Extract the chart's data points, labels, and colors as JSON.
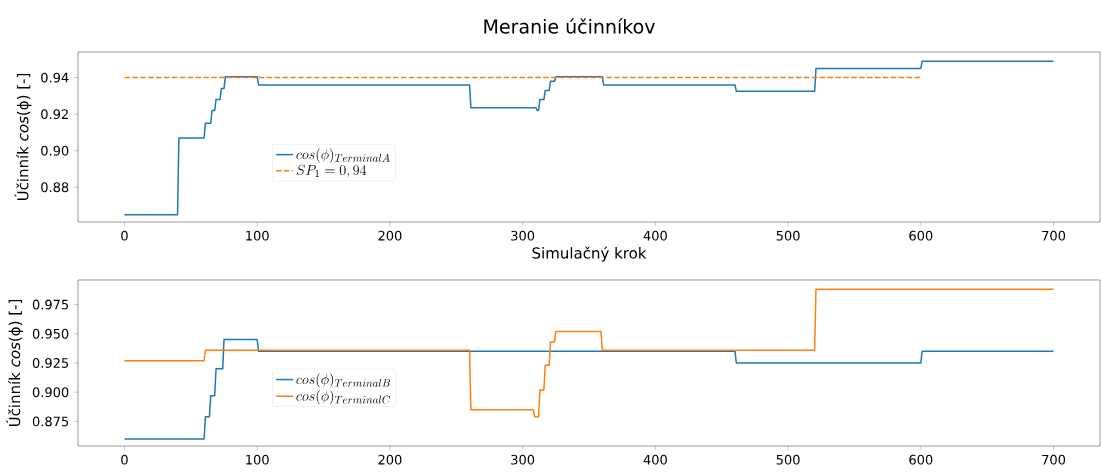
{
  "chart_data": [
    {
      "type": "line",
      "title": "Meranie účinníkov",
      "xlabel": "Simulačný krok",
      "ylabel": "Účinník *cos*(ϕ) [-]",
      "legend": "left",
      "xlim": [
        -35,
        735
      ],
      "ylim": [
        0.861,
        0.954
      ],
      "xticks": [
        0,
        100,
        200,
        300,
        400,
        500,
        600,
        700
      ],
      "yticks": [
        {
          "value": 0.88,
          "label": "0.88"
        },
        {
          "value": 0.9,
          "label": "0.90"
        },
        {
          "value": 0.92,
          "label": "0.92"
        },
        {
          "value": 0.94,
          "label": "0.94"
        }
      ],
      "series": [
        {
          "name": "cos(\\phi)_{TerminalA}",
          "color": "#1f77b4",
          "line_style": "solid",
          "x": [
            0,
            40,
            41,
            60,
            61,
            65,
            66,
            68,
            69,
            72,
            73,
            75,
            76,
            100,
            101,
            260,
            261,
            310,
            311,
            312,
            313,
            316,
            317,
            320,
            321,
            324,
            325,
            360,
            361,
            460,
            461,
            520,
            521,
            600,
            601,
            700
          ],
          "values": [
            0.865,
            0.865,
            0.907,
            0.907,
            0.915,
            0.915,
            0.922,
            0.922,
            0.928,
            0.928,
            0.934,
            0.934,
            0.9405,
            0.9405,
            0.936,
            0.936,
            0.9235,
            0.9235,
            0.922,
            0.922,
            0.928,
            0.928,
            0.933,
            0.933,
            0.938,
            0.938,
            0.9405,
            0.9405,
            0.936,
            0.936,
            0.9325,
            0.9325,
            0.945,
            0.945,
            0.949,
            0.949
          ]
        },
        {
          "name": "SP_1 = 0,94",
          "color": "#ff7f0e",
          "line_style": "dashed",
          "x": [
            0,
            600
          ],
          "values": [
            0.94,
            0.94
          ]
        }
      ]
    },
    {
      "type": "line",
      "ylabel": "Účinník *cos*(ϕ) [-]",
      "legend": "left",
      "xlim": [
        -35,
        735
      ],
      "ylim": [
        0.854,
        0.996
      ],
      "xticks": [
        0,
        100,
        200,
        300,
        400,
        500,
        600,
        700
      ],
      "yticks": [
        {
          "value": 0.875,
          "label": "0.875"
        },
        {
          "value": 0.9,
          "label": "0.900"
        },
        {
          "value": 0.925,
          "label": "0.925"
        },
        {
          "value": 0.95,
          "label": "0.950"
        },
        {
          "value": 0.975,
          "label": "0.975"
        }
      ],
      "series": [
        {
          "name": "cos(\\phi)_{TerminalB}",
          "color": "#1f77b4",
          "line_style": "solid",
          "x": [
            0,
            60,
            61,
            64,
            65,
            68,
            69,
            74,
            75,
            100,
            101,
            460,
            461,
            600,
            601,
            700
          ],
          "values": [
            0.86,
            0.86,
            0.879,
            0.879,
            0.897,
            0.897,
            0.92,
            0.92,
            0.945,
            0.945,
            0.935,
            0.935,
            0.925,
            0.925,
            0.935,
            0.935
          ]
        },
        {
          "name": "cos(\\phi)_{TerminalC}",
          "color": "#ff7f0e",
          "line_style": "solid",
          "x": [
            0,
            60,
            61,
            260,
            261,
            308,
            309,
            312,
            313,
            316,
            317,
            320,
            321,
            324,
            325,
            359,
            360,
            520,
            521,
            700
          ],
          "values": [
            0.927,
            0.927,
            0.936,
            0.936,
            0.885,
            0.885,
            0.879,
            0.879,
            0.902,
            0.902,
            0.923,
            0.923,
            0.943,
            0.943,
            0.952,
            0.952,
            0.936,
            0.936,
            0.988,
            0.988
          ]
        }
      ]
    }
  ]
}
